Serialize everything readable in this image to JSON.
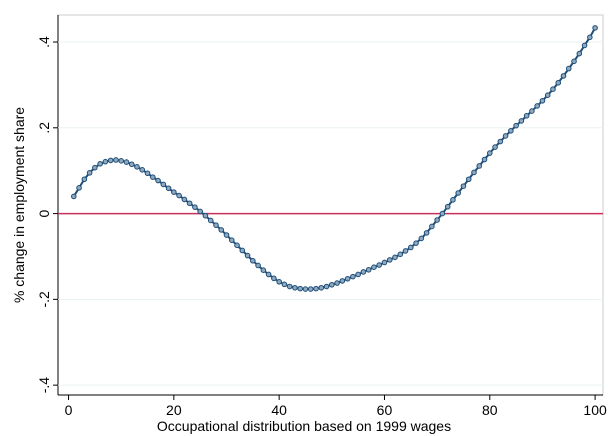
{
  "chart_data": {
    "type": "line",
    "x_label": "Occupational distribution based on 1999 wages",
    "y_label": "% change in employment share",
    "x": [
      1,
      2,
      3,
      4,
      5,
      6,
      7,
      8,
      9,
      10,
      11,
      12,
      13,
      14,
      15,
      16,
      17,
      18,
      19,
      20,
      21,
      22,
      23,
      24,
      25,
      26,
      27,
      28,
      29,
      30,
      31,
      32,
      33,
      34,
      35,
      36,
      37,
      38,
      39,
      40,
      41,
      42,
      43,
      44,
      45,
      46,
      47,
      48,
      49,
      50,
      51,
      52,
      53,
      54,
      55,
      56,
      57,
      58,
      59,
      60,
      61,
      62,
      63,
      64,
      65,
      66,
      67,
      68,
      69,
      70,
      71,
      72,
      73,
      74,
      75,
      76,
      77,
      78,
      79,
      80,
      81,
      82,
      83,
      84,
      85,
      86,
      87,
      88,
      89,
      90,
      91,
      92,
      93,
      94,
      95,
      96,
      97,
      98,
      99,
      100
    ],
    "series": [
      {
        "color": "#1f4e79",
        "values": [
          0.04,
          0.06,
          0.08,
          0.095,
          0.107,
          0.116,
          0.121,
          0.124,
          0.125,
          0.123,
          0.12,
          0.115,
          0.109,
          0.102,
          0.094,
          0.085,
          0.077,
          0.068,
          0.059,
          0.05,
          0.042,
          0.033,
          0.024,
          0.015,
          0.005,
          -0.005,
          -0.016,
          -0.027,
          -0.038,
          -0.05,
          -0.062,
          -0.074,
          -0.086,
          -0.098,
          -0.11,
          -0.121,
          -0.132,
          -0.142,
          -0.151,
          -0.159,
          -0.165,
          -0.17,
          -0.173,
          -0.175,
          -0.176,
          -0.176,
          -0.175,
          -0.173,
          -0.17,
          -0.166,
          -0.162,
          -0.157,
          -0.152,
          -0.147,
          -0.142,
          -0.136,
          -0.131,
          -0.125,
          -0.12,
          -0.114,
          -0.108,
          -0.102,
          -0.095,
          -0.087,
          -0.079,
          -0.069,
          -0.058,
          -0.045,
          -0.03,
          -0.015,
          0.0,
          0.016,
          0.032,
          0.048,
          0.064,
          0.08,
          0.096,
          0.111,
          0.126,
          0.141,
          0.155,
          0.168,
          0.181,
          0.193,
          0.205,
          0.216,
          0.228,
          0.239,
          0.251,
          0.263,
          0.276,
          0.29,
          0.305,
          0.321,
          0.338,
          0.355,
          0.373,
          0.392,
          0.411,
          0.433
        ]
      }
    ],
    "reference_line": {
      "y": 0,
      "color": "#c8325a"
    },
    "xlim": [
      -2,
      101.5
    ],
    "ylim": [
      -0.423,
      0.463
    ],
    "xticks": [
      0,
      20,
      40,
      60,
      80,
      100
    ],
    "yticks": [
      {
        "value": -0.4,
        "label": "-.4"
      },
      {
        "value": -0.2,
        "label": "-.2"
      },
      0,
      {
        "value": 0.2,
        "label": ".2"
      },
      {
        "value": 0.4,
        "label": ".4"
      }
    ],
    "grid": true
  }
}
